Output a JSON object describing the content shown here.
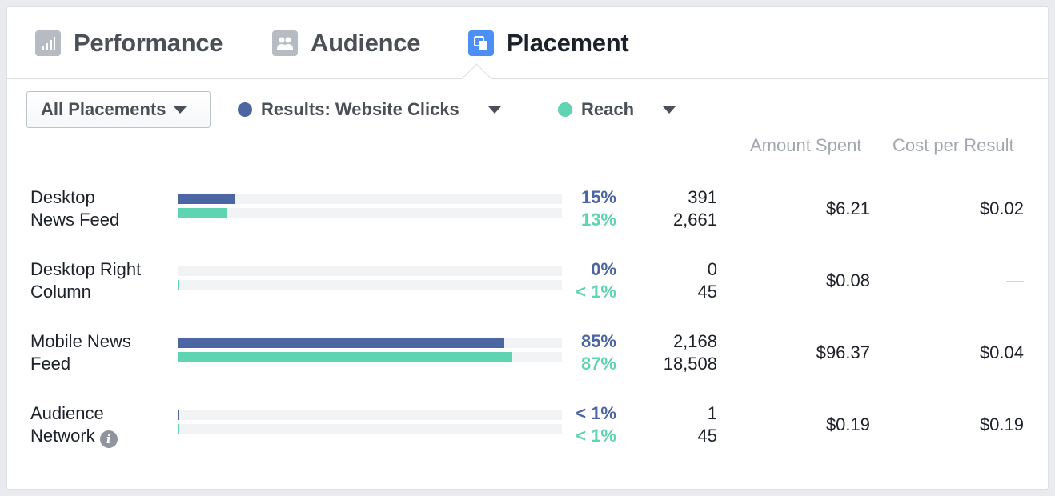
{
  "tabs": [
    {
      "label": "Performance",
      "icon": "bar-chart-icon",
      "active": false
    },
    {
      "label": "Audience",
      "icon": "people-icon",
      "active": false
    },
    {
      "label": "Placement",
      "icon": "placement-icon",
      "active": true
    }
  ],
  "controls": {
    "placements_dropdown": "All Placements",
    "metric1": {
      "label": "Results: Website Clicks",
      "color": "#4c66a4"
    },
    "metric2": {
      "label": "Reach",
      "color": "#5fd4b3"
    }
  },
  "columns": {
    "amount_spent": "Amount Spent",
    "cost_per_result": "Cost per Result"
  },
  "colors": {
    "results": "#4c66a4",
    "reach": "#5fd4b3",
    "active_tab": "#4b8ff7"
  },
  "rows": [
    {
      "name_line1": "Desktop",
      "name_line2": "News Feed",
      "results_share": 0.15,
      "reach_share": 0.13,
      "results_pct": "15%",
      "reach_pct": "13%",
      "results": "391",
      "reach": "2,661",
      "amount_spent": "$6.21",
      "cost_per_result": "$0.02",
      "info_icon": false
    },
    {
      "name_line1": "Desktop Right",
      "name_line2": "Column",
      "results_share": 0.0,
      "reach_share": 0.002,
      "results_pct": "0%",
      "reach_pct": "< 1%",
      "results": "0",
      "reach": "45",
      "amount_spent": "$0.08",
      "cost_per_result": "—",
      "info_icon": false
    },
    {
      "name_line1": "Mobile News",
      "name_line2": "Feed",
      "results_share": 0.85,
      "reach_share": 0.87,
      "results_pct": "85%",
      "reach_pct": "87%",
      "results": "2,168",
      "reach": "18,508",
      "amount_spent": "$96.37",
      "cost_per_result": "$0.04",
      "info_icon": false
    },
    {
      "name_line1": "Audience",
      "name_line2": "Network",
      "results_share": 0.003,
      "reach_share": 0.002,
      "results_pct": "< 1%",
      "reach_pct": "< 1%",
      "results": "1",
      "reach": "45",
      "amount_spent": "$0.19",
      "cost_per_result": "$0.19",
      "info_icon": true
    }
  ]
}
